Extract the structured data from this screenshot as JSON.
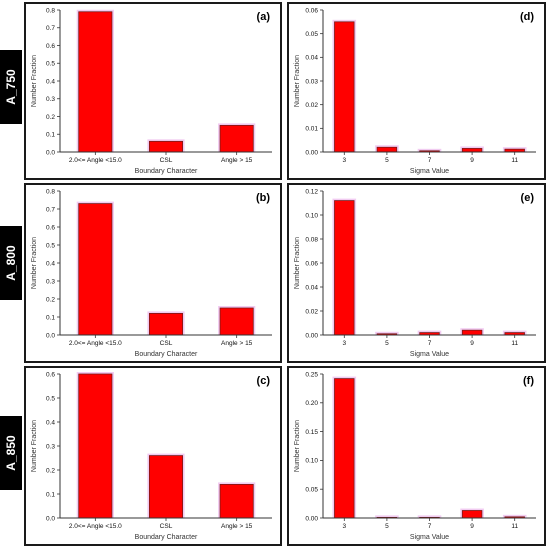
{
  "row_labels": [
    "A_750",
    "A_800",
    "A_850"
  ],
  "colors": {
    "bar": "#ff0000",
    "bar_edge": "#7a1a1a",
    "halo": "#e6a0e6",
    "axis": "#333333",
    "frame": "#1a1a1a"
  },
  "chart_data": [
    {
      "panel": "(a)",
      "type": "bar",
      "xlabel": "Boundary Character",
      "ylabel": "Number Fraction",
      "categories": [
        "2.0<= Angle <15.0",
        "CSL",
        "Angle > 15"
      ],
      "values": [
        0.79,
        0.06,
        0.15
      ],
      "ylim": [
        0,
        0.8
      ],
      "yticks": [
        "0.0",
        "0.1",
        "0.2",
        "0.3",
        "0.4",
        "0.5",
        "0.6",
        "0.7",
        "0.8"
      ]
    },
    {
      "panel": "(d)",
      "type": "bar",
      "xlabel": "Sigma Value",
      "ylabel": "Number Fraction",
      "categories": [
        "3",
        "5",
        "7",
        "9",
        "11"
      ],
      "values": [
        0.055,
        0.002,
        0.0005,
        0.0015,
        0.0012
      ],
      "ylim": [
        0,
        0.06
      ],
      "yticks": [
        "0.00",
        "0.01",
        "0.02",
        "0.03",
        "0.04",
        "0.05",
        "0.06"
      ]
    },
    {
      "panel": "(b)",
      "type": "bar",
      "xlabel": "Boundary Character",
      "ylabel": "Number Fraction",
      "categories": [
        "2.0<= Angle <15.0",
        "CSL",
        "Angle > 15"
      ],
      "values": [
        0.73,
        0.12,
        0.15
      ],
      "ylim": [
        0,
        0.8
      ],
      "yticks": [
        "0.0",
        "0.1",
        "0.2",
        "0.3",
        "0.4",
        "0.5",
        "0.6",
        "0.7",
        "0.8"
      ]
    },
    {
      "panel": "(e)",
      "type": "bar",
      "xlabel": "Sigma Value",
      "ylabel": "Number Fraction",
      "categories": [
        "3",
        "5",
        "7",
        "9",
        "11"
      ],
      "values": [
        0.112,
        0.001,
        0.002,
        0.004,
        0.002
      ],
      "ylim": [
        0,
        0.12
      ],
      "yticks": [
        "0.00",
        "0.02",
        "0.04",
        "0.06",
        "0.08",
        "0.10",
        "0.12"
      ]
    },
    {
      "panel": "(c)",
      "type": "bar",
      "xlabel": "Boundary Character",
      "ylabel": "Number Fraction",
      "categories": [
        "2.0<= Angle <15.0",
        "CSL",
        "Angle > 15"
      ],
      "values": [
        0.6,
        0.26,
        0.14
      ],
      "ylim": [
        0,
        0.6
      ],
      "yticks": [
        "0.0",
        "0.1",
        "0.2",
        "0.3",
        "0.4",
        "0.5",
        "0.6"
      ]
    },
    {
      "panel": "(f)",
      "type": "bar",
      "xlabel": "Sigma Value",
      "ylabel": "Number Fraction",
      "categories": [
        "3",
        "5",
        "7",
        "9",
        "11"
      ],
      "values": [
        0.242,
        0.001,
        0.0,
        0.013,
        0.002
      ],
      "ylim": [
        0,
        0.25
      ],
      "yticks": [
        "0.00",
        "0.05",
        "0.10",
        "0.15",
        "0.20",
        "0.25"
      ]
    }
  ]
}
